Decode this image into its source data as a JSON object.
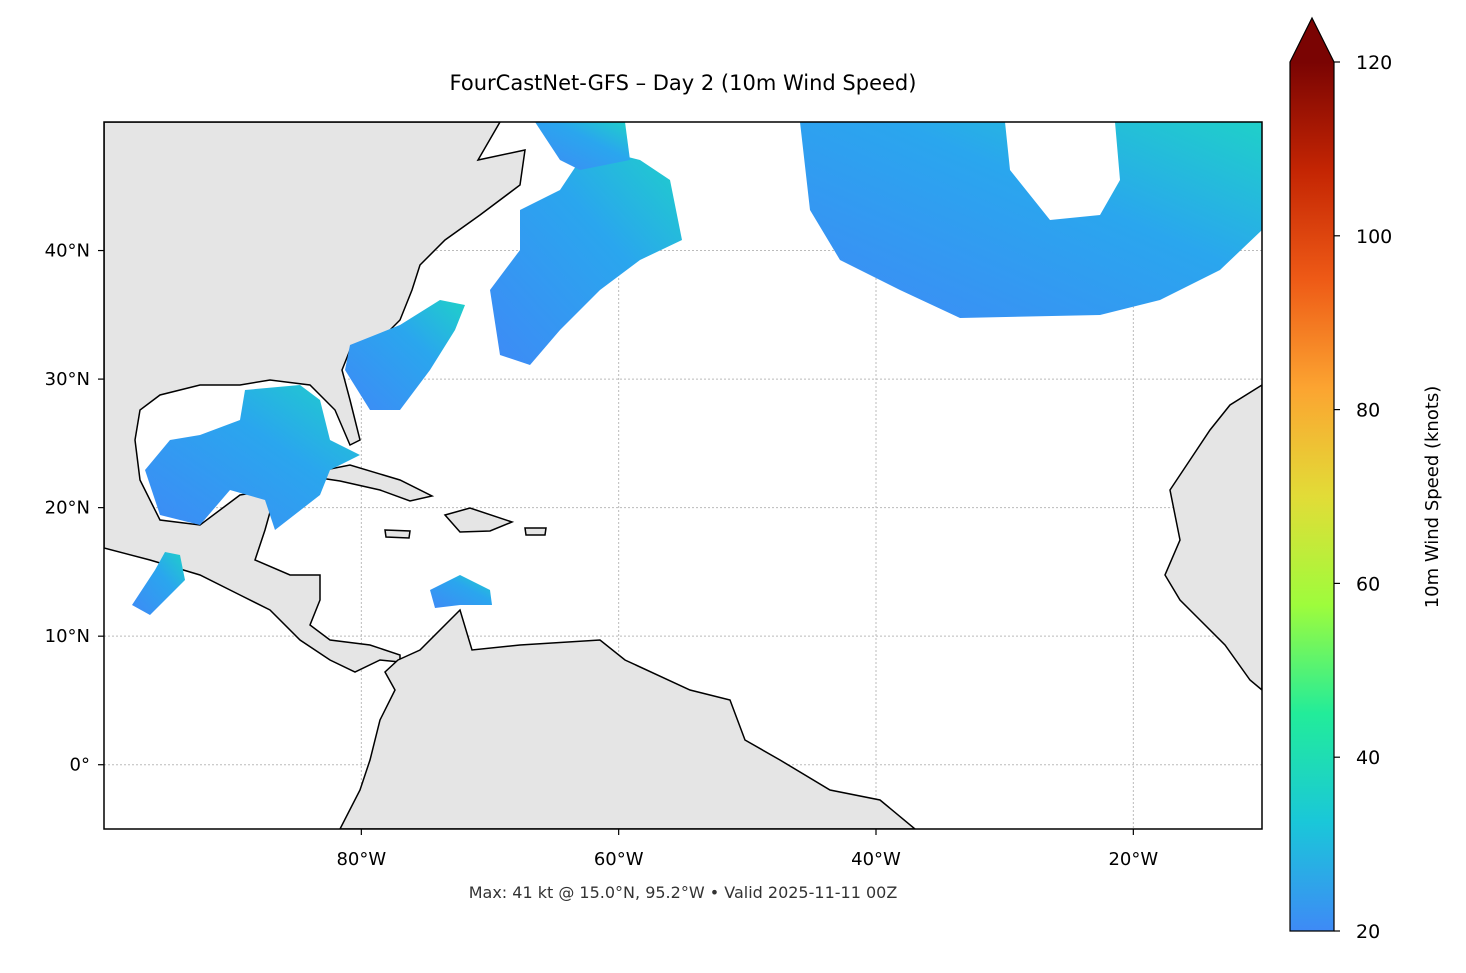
{
  "chart_data": {
    "type": "map",
    "title": "FourCastNet-GFS – Day 2 (10m Wind Speed)",
    "annotation": "Max: 41 kt @ 15.0°N, 95.2°W • Valid 2025-11-11 00Z",
    "xlim": [
      -100,
      -10
    ],
    "ylim": [
      -5,
      50
    ],
    "xticks": [
      {
        "value": -80,
        "label": "80°W"
      },
      {
        "value": -60,
        "label": "60°W"
      },
      {
        "value": -40,
        "label": "40°W"
      },
      {
        "value": -20,
        "label": "20°W"
      }
    ],
    "yticks": [
      {
        "value": 0,
        "label": "0°"
      },
      {
        "value": 10,
        "label": "10°N"
      },
      {
        "value": 20,
        "label": "20°N"
      },
      {
        "value": 30,
        "label": "30°N"
      },
      {
        "value": 40,
        "label": "40°N"
      }
    ],
    "grid": true,
    "colorbar": {
      "label": "10m Wind Speed (knots)",
      "lim": [
        20,
        120
      ],
      "ticks": [
        20,
        40,
        60,
        80,
        100,
        120
      ],
      "colormap": [
        "#3e8af6",
        "#1ac7d9",
        "#22ec9a",
        "#9efc3c",
        "#e2dc37",
        "#fca431",
        "#ee5a16",
        "#c42503",
        "#7a0403"
      ],
      "extend": "max"
    }
  }
}
